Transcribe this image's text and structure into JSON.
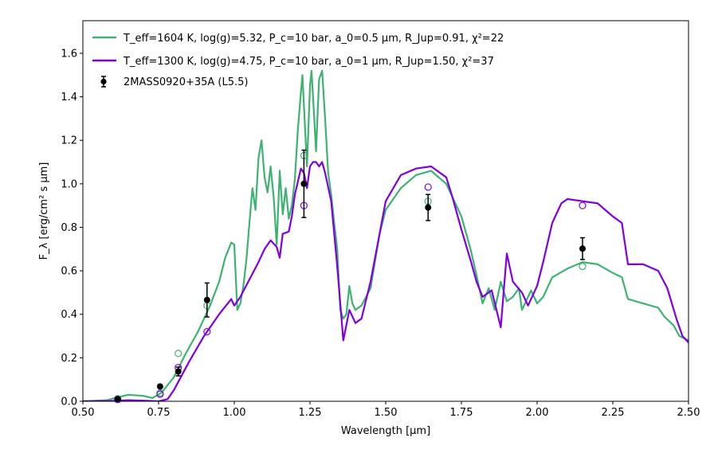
{
  "chart_data": {
    "type": "line",
    "xlabel": "Wavelength [μm]",
    "ylabel": "F_λ [erg/cm² s μm]",
    "xlim": [
      0.5,
      2.5
    ],
    "ylim": [
      0.0,
      1.75
    ],
    "xticks": [
      "0.50",
      "0.75",
      "1.00",
      "1.25",
      "1.50",
      "1.75",
      "2.00",
      "2.25",
      "2.50"
    ],
    "yticks": [
      "0.0",
      "0.2",
      "0.4",
      "0.6",
      "0.8",
      "1.0",
      "1.2",
      "1.4",
      "1.6"
    ],
    "legend_position": "top-left",
    "series": [
      {
        "name": "T_eff=1604 K, log(g)=5.32, P_c=10 bar, a_0=0.5 μm, R_Jup=0.91, χ²=22",
        "color": "#3cb371",
        "style": "line",
        "x": [
          0.5,
          0.58,
          0.62,
          0.65,
          0.7,
          0.73,
          0.76,
          0.8,
          0.84,
          0.88,
          0.92,
          0.95,
          0.97,
          0.99,
          1.0,
          1.01,
          1.02,
          1.03,
          1.04,
          1.05,
          1.06,
          1.07,
          1.08,
          1.09,
          1.1,
          1.11,
          1.12,
          1.13,
          1.14,
          1.15,
          1.16,
          1.17,
          1.18,
          1.19,
          1.2,
          1.21,
          1.22,
          1.225,
          1.23,
          1.24,
          1.25,
          1.255,
          1.26,
          1.27,
          1.28,
          1.29,
          1.3,
          1.31,
          1.32,
          1.33,
          1.34,
          1.35,
          1.36,
          1.37,
          1.38,
          1.39,
          1.4,
          1.41,
          1.42,
          1.45,
          1.48,
          1.5,
          1.55,
          1.6,
          1.65,
          1.7,
          1.72,
          1.75,
          1.78,
          1.8,
          1.82,
          1.84,
          1.86,
          1.88,
          1.9,
          1.92,
          1.94,
          1.95,
          1.97,
          1.98,
          2.0,
          2.02,
          2.05,
          2.1,
          2.15,
          2.2,
          2.25,
          2.28,
          2.3,
          2.35,
          2.4,
          2.42,
          2.45,
          2.47,
          2.5
        ],
        "y": [
          0.0,
          0.005,
          0.02,
          0.03,
          0.025,
          0.015,
          0.04,
          0.11,
          0.22,
          0.32,
          0.44,
          0.55,
          0.66,
          0.73,
          0.72,
          0.42,
          0.45,
          0.53,
          0.65,
          0.82,
          0.98,
          0.88,
          1.12,
          1.2,
          1.03,
          0.96,
          1.08,
          0.94,
          0.72,
          1.06,
          0.86,
          0.98,
          0.84,
          0.9,
          1.02,
          1.25,
          1.42,
          1.5,
          1.36,
          1.08,
          1.45,
          1.52,
          1.4,
          1.15,
          1.48,
          1.52,
          1.3,
          1.05,
          0.95,
          0.82,
          0.7,
          0.42,
          0.38,
          0.4,
          0.53,
          0.45,
          0.42,
          0.43,
          0.44,
          0.52,
          0.77,
          0.88,
          0.98,
          1.04,
          1.06,
          1.0,
          0.94,
          0.85,
          0.7,
          0.58,
          0.45,
          0.52,
          0.42,
          0.55,
          0.46,
          0.48,
          0.52,
          0.42,
          0.48,
          0.51,
          0.45,
          0.48,
          0.57,
          0.61,
          0.64,
          0.63,
          0.59,
          0.57,
          0.47,
          0.45,
          0.43,
          0.39,
          0.35,
          0.3,
          0.28
        ]
      },
      {
        "name": "T_eff=1300 K, log(g)=4.75, P_c=10 bar, a_0=1 μm, R_Jup=1.50, χ²=37",
        "color": "#8000e0",
        "style": "line",
        "x": [
          0.5,
          0.6,
          0.65,
          0.7,
          0.75,
          0.78,
          0.8,
          0.85,
          0.9,
          0.95,
          0.99,
          1.0,
          1.02,
          1.05,
          1.08,
          1.1,
          1.12,
          1.14,
          1.15,
          1.16,
          1.18,
          1.19,
          1.2,
          1.22,
          1.23,
          1.24,
          1.25,
          1.26,
          1.27,
          1.28,
          1.29,
          1.3,
          1.32,
          1.34,
          1.36,
          1.38,
          1.4,
          1.42,
          1.45,
          1.5,
          1.55,
          1.6,
          1.65,
          1.7,
          1.72,
          1.75,
          1.78,
          1.8,
          1.82,
          1.85,
          1.88,
          1.9,
          1.92,
          1.95,
          1.97,
          2.0,
          2.02,
          2.05,
          2.08,
          2.1,
          2.15,
          2.2,
          2.25,
          2.28,
          2.3,
          2.35,
          2.4,
          2.43,
          2.46,
          2.48,
          2.5
        ],
        "y": [
          0.0,
          0.002,
          0.005,
          0.003,
          0.0,
          0.01,
          0.05,
          0.18,
          0.3,
          0.4,
          0.47,
          0.44,
          0.48,
          0.56,
          0.64,
          0.7,
          0.74,
          0.71,
          0.66,
          0.77,
          0.78,
          0.85,
          0.95,
          1.07,
          1.05,
          0.98,
          1.08,
          1.1,
          1.1,
          1.08,
          1.1,
          1.05,
          0.92,
          0.62,
          0.28,
          0.42,
          0.36,
          0.38,
          0.55,
          0.92,
          1.04,
          1.07,
          1.08,
          1.03,
          0.94,
          0.79,
          0.65,
          0.55,
          0.48,
          0.51,
          0.34,
          0.68,
          0.55,
          0.5,
          0.44,
          0.53,
          0.64,
          0.82,
          0.91,
          0.93,
          0.92,
          0.91,
          0.85,
          0.82,
          0.63,
          0.63,
          0.6,
          0.52,
          0.38,
          0.3,
          0.27
        ]
      },
      {
        "name": "2MASS0920+35A (L5.5)",
        "color": "#000000",
        "style": "errorbar",
        "x": [
          0.615,
          0.755,
          0.815,
          0.91,
          1.23,
          1.64,
          2.15
        ],
        "y": [
          0.01,
          0.068,
          0.137,
          0.466,
          1.0,
          0.891,
          0.702
        ],
        "yerr": [
          0.003,
          0.008,
          0.02,
          0.078,
          0.155,
          0.06,
          0.05
        ]
      }
    ],
    "model_photometry": [
      {
        "color": "#3cb371",
        "x": [
          0.615,
          0.755,
          0.815,
          0.91,
          1.23,
          1.64,
          2.15
        ],
        "y": [
          0.012,
          0.038,
          0.22,
          0.44,
          1.13,
          0.92,
          0.62
        ]
      },
      {
        "color": "#8000e0",
        "x": [
          0.615,
          0.755,
          0.815,
          0.91,
          1.23,
          1.64,
          2.15
        ],
        "y": [
          0.008,
          0.033,
          0.155,
          0.32,
          0.9,
          0.985,
          0.9
        ]
      }
    ]
  }
}
